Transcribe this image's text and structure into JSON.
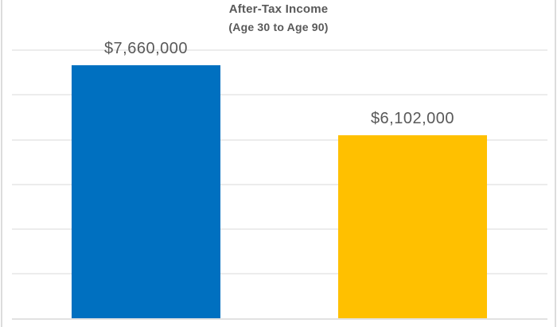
{
  "chart": {
    "title": "After-Tax Income",
    "subtitle": "(Age 30 to Age 90)"
  },
  "chart_data": {
    "type": "bar",
    "title": "After-Tax Income",
    "subtitle": "(Age 30 to Age 90)",
    "categories": [
      "",
      ""
    ],
    "values": [
      7660000,
      6102000
    ],
    "data_labels": [
      "$7,660,000",
      "$6,102,000"
    ],
    "bar_colors": [
      "#0070C0",
      "#FFC000"
    ],
    "xlabel": "",
    "ylabel": "",
    "ylim": [
      2000000,
      9000000
    ],
    "gridline_interval": 1000000,
    "grid": true,
    "axis_tick_labels_visible": false,
    "legend_position": "none"
  },
  "style_colors": {
    "bar_blue": "#0070C0",
    "bar_gold": "#FFC000",
    "title_text": "#595959",
    "label_text": "#595959",
    "gridline": "#ececec",
    "axis_line": "#e2e2e2",
    "chart_border": "#dcdcdc"
  }
}
